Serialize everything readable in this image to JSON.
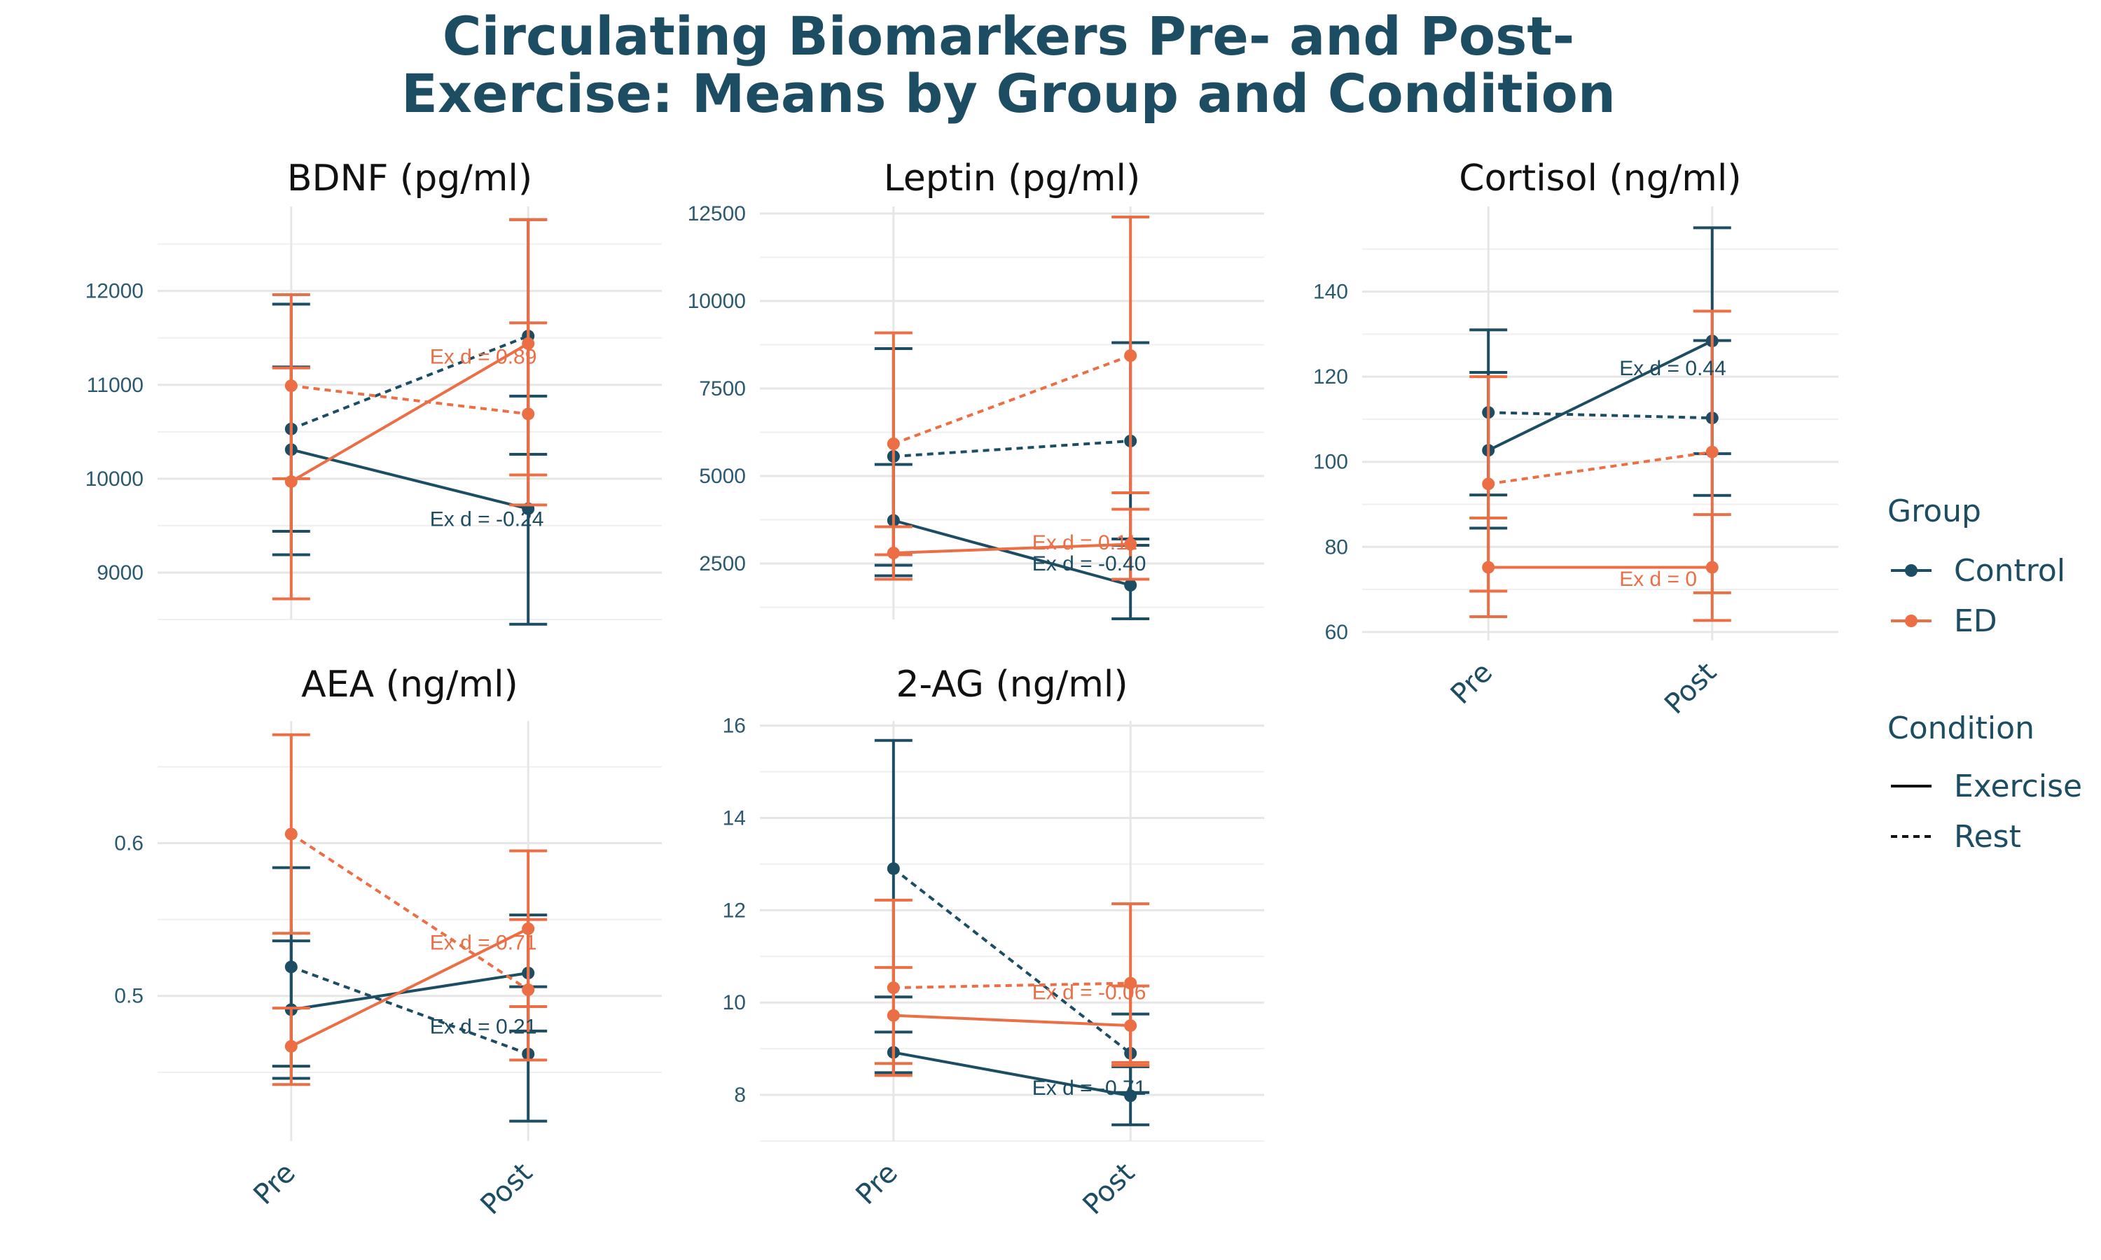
{
  "title_lines": [
    "Circulating Biomarkers Pre- and Post-",
    "Exercise: Means by Group and Condition"
  ],
  "colors": {
    "Control": "#1d4d63",
    "ED": "#ec6e45",
    "grid": "#e6e6e6"
  },
  "legend": {
    "group_title": "Group",
    "group_items": [
      "Control",
      "ED"
    ],
    "condition_title": "Condition",
    "condition_items": [
      "Exercise",
      "Rest"
    ]
  },
  "chart_data": [
    {
      "type": "line",
      "title": "BDNF (pg/ml)",
      "categories": [
        "Pre",
        "Post"
      ],
      "ylim": [
        8500,
        12900
      ],
      "yticks": [
        9000,
        10000,
        11000,
        12000
      ],
      "show_xticks": false,
      "series": [
        {
          "group": "Control",
          "condition": "Exercise",
          "mean": [
            10310,
            9680
          ],
          "lower": [
            9190,
            8450
          ],
          "upper": [
            11190,
            10880
          ]
        },
        {
          "group": "Control",
          "condition": "Rest",
          "mean": [
            10530,
            11520
          ],
          "lower": [
            9440,
            10260
          ],
          "upper": [
            11860,
            12760
          ]
        },
        {
          "group": "ED",
          "condition": "Exercise",
          "mean": [
            9970,
            11440
          ],
          "lower": [
            8720,
            10040
          ],
          "upper": [
            11180,
            12760
          ]
        },
        {
          "group": "ED",
          "condition": "Rest",
          "mean": [
            10990,
            10690
          ],
          "lower": [
            10000,
            9720
          ],
          "upper": [
            11960,
            11660
          ]
        }
      ],
      "annotations": [
        {
          "text": "Ex d = 0.89",
          "group": "ED",
          "x": 1.5,
          "y": 11300
        },
        {
          "text": "Ex d = -0.24",
          "group": "Control",
          "x": 1.5,
          "y": 9570
        }
      ]
    },
    {
      "type": "line",
      "title": "Leptin (pg/ml)",
      "categories": [
        "Pre",
        "Post"
      ],
      "ylim": [
        900,
        12700
      ],
      "yticks": [
        2500,
        5000,
        7500,
        10000,
        12500
      ],
      "show_xticks": false,
      "series": [
        {
          "group": "Control",
          "condition": "Exercise",
          "mean": [
            3730,
            1880
          ],
          "lower": [
            2150,
            920
          ],
          "upper": [
            5330,
            3020
          ]
        },
        {
          "group": "Control",
          "condition": "Rest",
          "mean": [
            5560,
            6000
          ],
          "lower": [
            2450,
            3200
          ],
          "upper": [
            8640,
            8810
          ]
        },
        {
          "group": "ED",
          "condition": "Exercise",
          "mean": [
            2800,
            3050
          ],
          "lower": [
            2050,
            2050
          ],
          "upper": [
            3550,
            4050
          ]
        },
        {
          "group": "ED",
          "condition": "Rest",
          "mean": [
            5920,
            8440
          ],
          "lower": [
            2750,
            4520
          ],
          "upper": [
            9090,
            12400
          ]
        }
      ],
      "annotations": [
        {
          "text": "Ex d = 0.11",
          "group": "ED",
          "x": 1.5,
          "y": 3100
        },
        {
          "text": "Ex d = -0.40",
          "group": "Control",
          "x": 1.5,
          "y": 2500
        }
      ]
    },
    {
      "type": "line",
      "title": "Cortisol (ng/ml)",
      "categories": [
        "Pre",
        "Post"
      ],
      "ylim": [
        58,
        160
      ],
      "yticks": [
        60,
        80,
        100,
        120,
        140
      ],
      "show_xticks": true,
      "series": [
        {
          "group": "Control",
          "condition": "Exercise",
          "mean": [
            102.7,
            128.4
          ],
          "lower": [
            84.4,
            101.9
          ],
          "upper": [
            121.0,
            155.0
          ]
        },
        {
          "group": "Control",
          "condition": "Rest",
          "mean": [
            111.6,
            110.3
          ],
          "lower": [
            92.2,
            92.1
          ],
          "upper": [
            131.0,
            128.5
          ]
        },
        {
          "group": "ED",
          "condition": "Exercise",
          "mean": [
            75.2,
            75.2
          ],
          "lower": [
            63.6,
            62.7
          ],
          "upper": [
            86.8,
            87.6
          ]
        },
        {
          "group": "ED",
          "condition": "Rest",
          "mean": [
            94.8,
            102.3
          ],
          "lower": [
            69.6,
            69.2
          ],
          "upper": [
            120.0,
            135.4
          ]
        }
      ],
      "annotations": [
        {
          "text": "Ex d = 0.44",
          "group": "Control",
          "x": 1.5,
          "y": 122
        },
        {
          "text": "Ex d = 0",
          "group": "ED",
          "x": 1.5,
          "y": 72.5
        }
      ]
    },
    {
      "type": "line",
      "title": "AEA (ng/ml)",
      "categories": [
        "Pre",
        "Post"
      ],
      "ylim": [
        0.405,
        0.68
      ],
      "yticks": [
        0.5,
        0.6
      ],
      "show_xticks": true,
      "series": [
        {
          "group": "Control",
          "condition": "Exercise",
          "mean": [
            0.491,
            0.515
          ],
          "lower": [
            0.446,
            0.477
          ],
          "upper": [
            0.536,
            0.553
          ]
        },
        {
          "group": "Control",
          "condition": "Rest",
          "mean": [
            0.519,
            0.462
          ],
          "lower": [
            0.454,
            0.418
          ],
          "upper": [
            0.584,
            0.506
          ]
        },
        {
          "group": "ED",
          "condition": "Exercise",
          "mean": [
            0.467,
            0.544
          ],
          "lower": [
            0.442,
            0.493
          ],
          "upper": [
            0.492,
            0.595
          ]
        },
        {
          "group": "ED",
          "condition": "Rest",
          "mean": [
            0.606,
            0.504
          ],
          "lower": [
            0.541,
            0.458
          ],
          "upper": [
            0.671,
            0.55
          ]
        }
      ],
      "annotations": [
        {
          "text": "Ex d = 0.71",
          "group": "ED",
          "x": 1.5,
          "y": 0.535
        },
        {
          "text": "Ex d = 0.21",
          "group": "Control",
          "x": 1.5,
          "y": 0.48
        }
      ]
    },
    {
      "type": "line",
      "title": "2-AG (ng/ml)",
      "categories": [
        "Pre",
        "Post"
      ],
      "ylim": [
        7.0,
        16.1
      ],
      "yticks": [
        8,
        10,
        12,
        14,
        16
      ],
      "show_xticks": true,
      "series": [
        {
          "group": "Control",
          "condition": "Exercise",
          "mean": [
            8.92,
            7.98
          ],
          "lower": [
            8.48,
            7.35
          ],
          "upper": [
            9.36,
            8.61
          ]
        },
        {
          "group": "Control",
          "condition": "Rest",
          "mean": [
            12.9,
            8.9
          ],
          "lower": [
            10.12,
            8.05
          ],
          "upper": [
            15.68,
            9.75
          ]
        },
        {
          "group": "ED",
          "condition": "Exercise",
          "mean": [
            9.72,
            9.5
          ],
          "lower": [
            8.68,
            8.64
          ],
          "upper": [
            10.76,
            10.36
          ]
        },
        {
          "group": "ED",
          "condition": "Rest",
          "mean": [
            10.32,
            10.42
          ],
          "lower": [
            8.42,
            8.7
          ],
          "upper": [
            12.22,
            12.14
          ]
        }
      ],
      "annotations": [
        {
          "text": "Ex d = -0.06",
          "group": "ED",
          "x": 1.5,
          "y": 10.22
        },
        {
          "text": "Ex d = -0.71",
          "group": "Control",
          "x": 1.5,
          "y": 8.15
        }
      ]
    }
  ]
}
